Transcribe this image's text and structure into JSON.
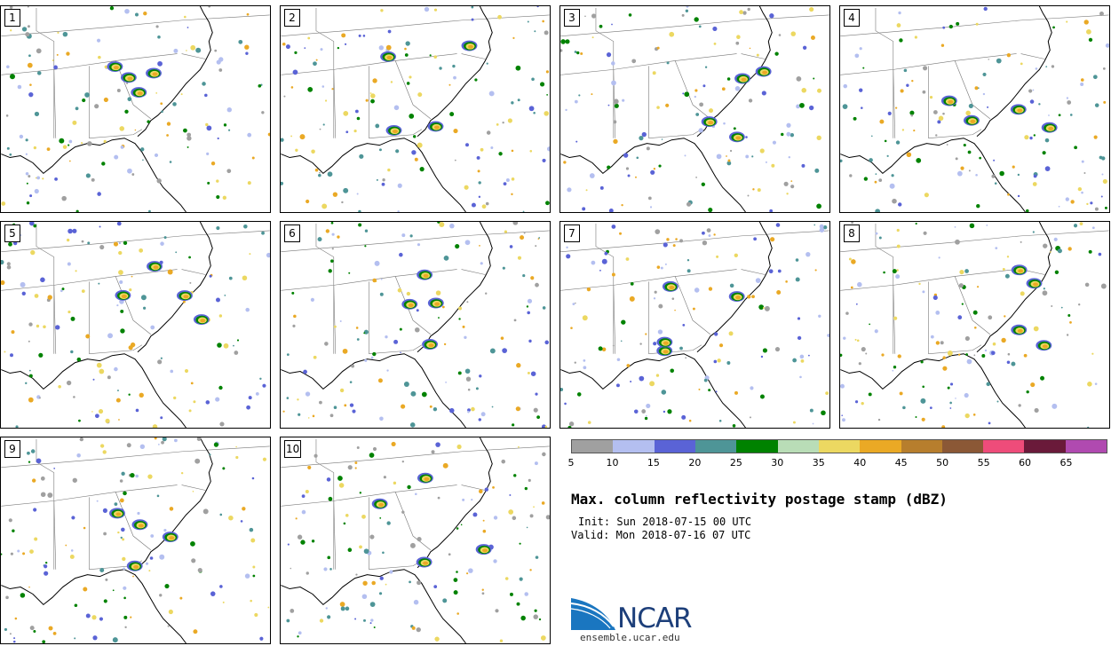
{
  "panels": [
    {
      "label": "1"
    },
    {
      "label": "2"
    },
    {
      "label": "3"
    },
    {
      "label": "4"
    },
    {
      "label": "5"
    },
    {
      "label": "6"
    },
    {
      "label": "7"
    },
    {
      "label": "8"
    },
    {
      "label": "9"
    },
    {
      "label": "10"
    }
  ],
  "colorbar": {
    "colors": [
      "#a0a0a0",
      "#b4bff0",
      "#5a63d6",
      "#4e9597",
      "#008200",
      "#b9ddb7",
      "#ecd861",
      "#eaa925",
      "#b77e2d",
      "#8b5836",
      "#ee4c7a",
      "#6a1a3a",
      "#b04ab0"
    ],
    "ticks": [
      "5",
      "10",
      "15",
      "20",
      "25",
      "30",
      "35",
      "40",
      "45",
      "50",
      "55",
      "60",
      "65"
    ]
  },
  "title": "Max. column reflectivity postage stamp (dBZ)",
  "init_line": "Init: Sun 2018-07-15 00 UTC",
  "valid_line": "Valid: Mon 2018-07-16 07 UTC",
  "logo": {
    "name": "NCAR",
    "url": "ensemble.ucar.edu"
  }
}
